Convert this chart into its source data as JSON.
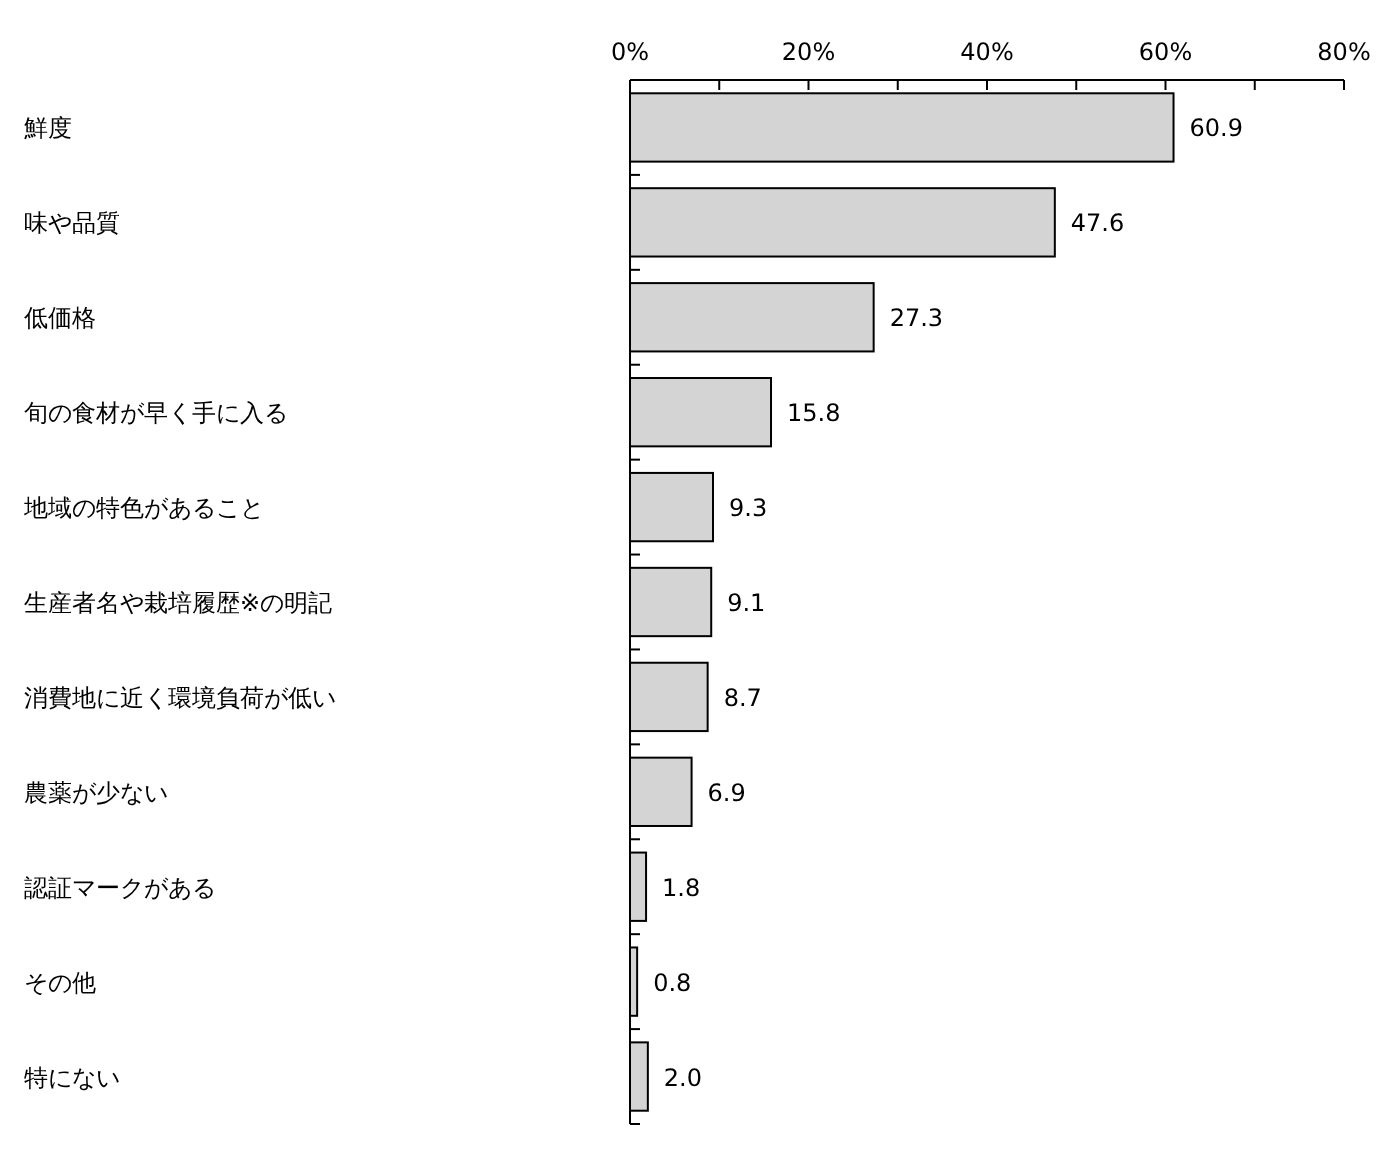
{
  "chart_data": {
    "type": "bar",
    "orientation": "horizontal",
    "categories": [
      "鮮度",
      "味や品質",
      "低価格",
      "旬の食材が早く手に入る",
      "地域の特色があること",
      "生産者名や栽培履歴※の明記",
      "消費地に近く環境負荷が低い",
      "農薬が少ない",
      "認証マークがある",
      "その他",
      "特にない"
    ],
    "values": [
      60.9,
      47.6,
      27.3,
      15.8,
      9.3,
      9.1,
      8.7,
      6.9,
      1.8,
      0.8,
      2.0
    ],
    "value_labels": [
      "60.9",
      "47.6",
      "27.3",
      "15.8",
      "9.3",
      "9.1",
      "8.7",
      "6.9",
      "1.8",
      "0.8",
      "2.0"
    ],
    "color": "#d4d4d4",
    "x2lim": [
      0,
      80
    ],
    "x2ticks": [
      {
        "value": 0,
        "label": "0%"
      },
      {
        "value": 10,
        "label": null
      },
      {
        "value": 20,
        "label": "20%"
      },
      {
        "value": 30,
        "label": null
      },
      {
        "value": 40,
        "label": "40%"
      },
      {
        "value": 50,
        "label": null
      },
      {
        "value": 60,
        "label": "60%"
      },
      {
        "value": 70,
        "label": null
      },
      {
        "value": 80,
        "label": "80%"
      }
    ],
    "grid": false
  }
}
